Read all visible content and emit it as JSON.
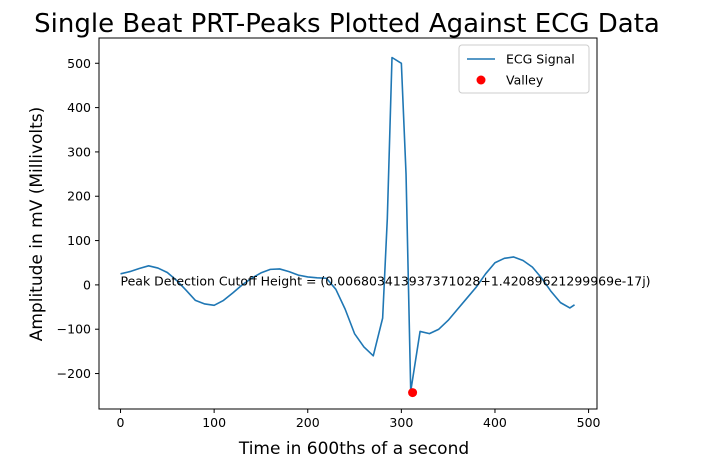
{
  "chart_data": {
    "type": "line",
    "title": "Single Beat PRT-Peaks Plotted Against ECG Data",
    "xlabel": "Time in 600ths of a second",
    "ylabel": "Amplitude in mV (Millivolts)",
    "xlim": [
      -23,
      509
    ],
    "ylim": [
      -280,
      557
    ],
    "xticks": [
      0,
      100,
      200,
      300,
      400,
      500
    ],
    "yticks": [
      -200,
      -100,
      0,
      100,
      200,
      300,
      400,
      500
    ],
    "legend": "top-right",
    "grid": false,
    "series": [
      {
        "name": "ECG Signal",
        "kind": "line",
        "color": "#1f77b4",
        "x": [
          0,
          10,
          20,
          30,
          40,
          50,
          60,
          70,
          80,
          90,
          100,
          110,
          120,
          130,
          140,
          150,
          160,
          170,
          180,
          190,
          200,
          210,
          220,
          230,
          240,
          250,
          260,
          270,
          280,
          285,
          290,
          300,
          305,
          310,
          320,
          330,
          340,
          350,
          360,
          370,
          380,
          390,
          400,
          410,
          420,
          430,
          440,
          450,
          460,
          470,
          480,
          485
        ],
        "y": [
          25,
          30,
          37,
          43,
          38,
          28,
          10,
          -12,
          -35,
          -43,
          -46,
          -35,
          -18,
          0,
          15,
          27,
          35,
          36,
          30,
          22,
          18,
          16,
          15,
          -10,
          -55,
          -110,
          -140,
          -160,
          -75,
          150,
          513,
          500,
          250,
          -240,
          -105,
          -110,
          -100,
          -80,
          -55,
          -30,
          -5,
          25,
          50,
          60,
          63,
          55,
          40,
          15,
          -15,
          -40,
          -52,
          -45
        ]
      },
      {
        "name": "Valley",
        "kind": "marker",
        "color": "#ff0000",
        "x": [
          312
        ],
        "y": [
          -243
        ]
      }
    ],
    "annotations": [
      {
        "text": "Peak Detection Cutoff Height = (0.006803413937371028+1.42089621299969e-17j)",
        "x": 0,
        "y": 0
      }
    ]
  }
}
